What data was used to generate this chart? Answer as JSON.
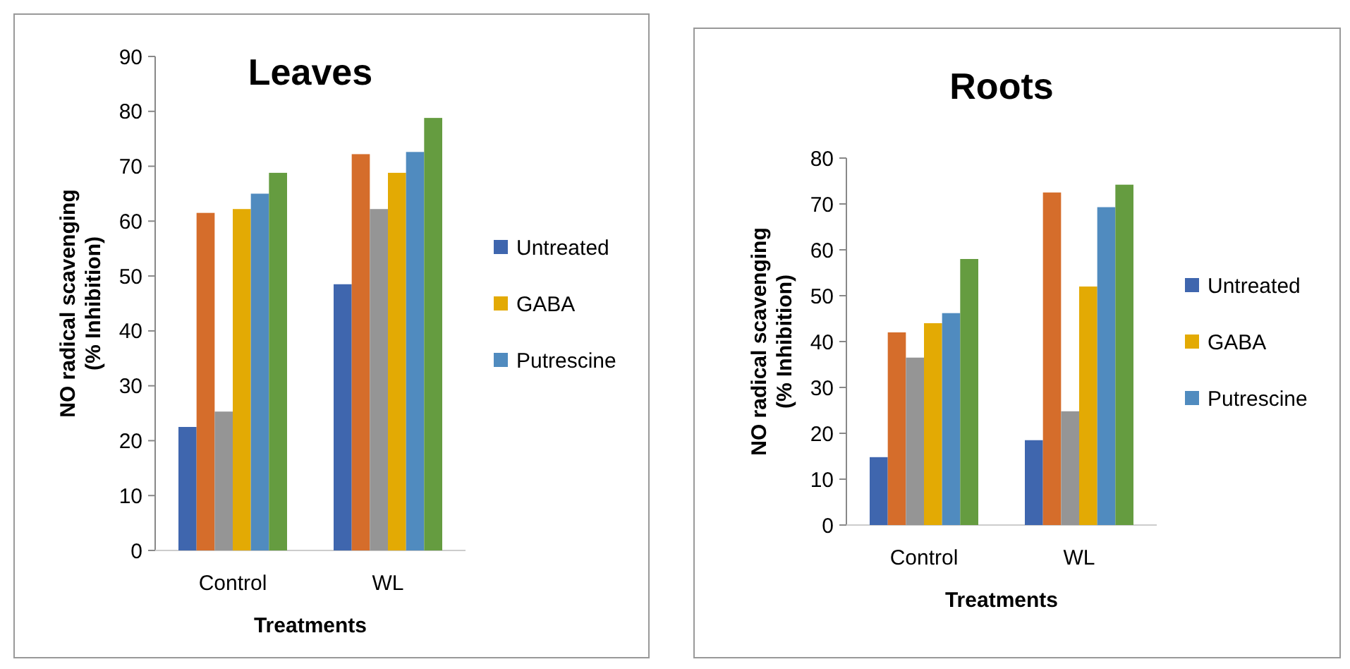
{
  "chart_data": [
    {
      "type": "bar",
      "title": "Leaves",
      "xlabel": "Treatments",
      "ylabel": "NO  radical scavenging\n(% Inhibition)",
      "categories": [
        "Control",
        "WL"
      ],
      "ylim": [
        0,
        90
      ],
      "yticks": [
        0,
        10,
        20,
        30,
        40,
        50,
        60,
        70,
        80,
        90
      ],
      "legend": "right",
      "series": [
        {
          "name": "Untreated",
          "color": "#3f66ae",
          "values": [
            22.5,
            48.5
          ]
        },
        {
          "color": "#d56d2b",
          "values": [
            61.5,
            72.2
          ]
        },
        {
          "color": "#959595",
          "values": [
            25.3,
            62.2
          ]
        },
        {
          "name": "GABA",
          "color": "#e3aa04",
          "values": [
            62.2,
            68.8
          ]
        },
        {
          "name": "Putrescine",
          "color": "#508bbf",
          "values": [
            65,
            72.6
          ]
        },
        {
          "color": "#659c40",
          "values": [
            68.8,
            78.8
          ]
        }
      ]
    },
    {
      "type": "bar",
      "title": "Roots",
      "xlabel": "Treatments",
      "ylabel": "NO  radical scavenging\n(% Inhibition)",
      "categories": [
        "Control",
        "WL"
      ],
      "ylim": [
        0,
        80
      ],
      "yticks": [
        0,
        10,
        20,
        30,
        40,
        50,
        60,
        70,
        80
      ],
      "legend": "right",
      "series": [
        {
          "name": "Untreated",
          "color": "#3f66ae",
          "values": [
            14.8,
            18.5
          ]
        },
        {
          "color": "#d56d2b",
          "values": [
            42,
            72.5
          ]
        },
        {
          "color": "#959595",
          "values": [
            36.5,
            24.8
          ]
        },
        {
          "name": "GABA",
          "color": "#e3aa04",
          "values": [
            44,
            52
          ]
        },
        {
          "name": "Putrescine",
          "color": "#508bbf",
          "values": [
            46.2,
            69.3
          ]
        },
        {
          "color": "#659c40",
          "values": [
            58,
            74.2
          ]
        }
      ]
    }
  ]
}
